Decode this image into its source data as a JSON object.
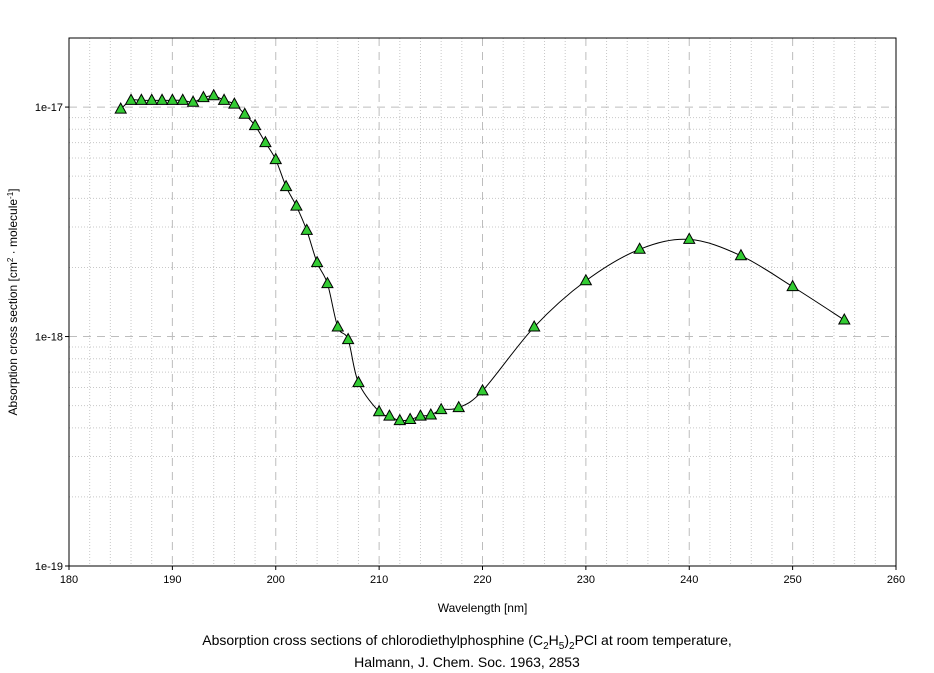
{
  "chart_data": {
    "type": "line",
    "yscale": "log",
    "xlim": [
      180,
      260
    ],
    "ylim": [
      1e-19,
      2e-17
    ],
    "xlabel": "Wavelength [nm]",
    "ylabel_parts": {
      "a": "Absorption cross section [cm",
      "sup1": "2",
      "b": " · molecule",
      "sup2": "-1",
      "c": "]"
    },
    "x_ticks": [
      180,
      190,
      200,
      210,
      220,
      230,
      240,
      250,
      260
    ],
    "x_tick_labels": [
      "180",
      "190",
      "200",
      "210",
      "220",
      "230",
      "240",
      "250",
      "260"
    ],
    "y_ticks": [
      1e-19,
      1e-18,
      1e-17
    ],
    "y_tick_labels": [
      "1e-19",
      "1e-18",
      "1e-17"
    ],
    "grid": true,
    "marker": "triangle",
    "marker_color": "#33cc33",
    "line_color": "#000000",
    "series": [
      {
        "x": [
          185,
          186,
          187,
          188,
          189,
          190,
          191,
          192,
          193,
          194,
          195,
          196,
          197,
          198,
          199,
          200,
          201,
          202,
          203,
          204,
          205,
          206,
          207,
          208,
          210,
          211,
          212,
          213,
          214,
          215,
          216,
          217.7,
          220,
          225,
          230,
          235.2,
          240,
          245,
          250,
          255
        ],
        "y": [
          9.8e-18,
          1.07e-17,
          1.07e-17,
          1.07e-17,
          1.07e-17,
          1.07e-17,
          1.07e-17,
          1.05e-17,
          1.1e-17,
          1.12e-17,
          1.07e-17,
          1.03e-17,
          9.3e-18,
          8.3e-18,
          7e-18,
          5.9e-18,
          4.5e-18,
          3.7e-18,
          2.9e-18,
          2.1e-18,
          1.7e-18,
          1.1e-18,
          9.7e-19,
          6.3e-19,
          4.7e-19,
          4.5e-19,
          4.3e-19,
          4.35e-19,
          4.5e-19,
          4.55e-19,
          4.8e-19,
          4.9e-19,
          5.8e-19,
          1.1e-18,
          1.75e-18,
          2.4e-18,
          2.65e-18,
          2.25e-18,
          1.65e-18,
          1.18e-18
        ]
      }
    ]
  },
  "caption": {
    "line1_a": "Absorption cross sections of chlorodiethylphosphine (C",
    "line1_sub1": "2",
    "line1_b": "H",
    "line1_sub2": "5",
    "line1_c": ")",
    "line1_sub3": "2",
    "line1_d": "PCl at room temperature,",
    "line2": "Halmann, J. Chem. Soc. 1963, 2853"
  }
}
